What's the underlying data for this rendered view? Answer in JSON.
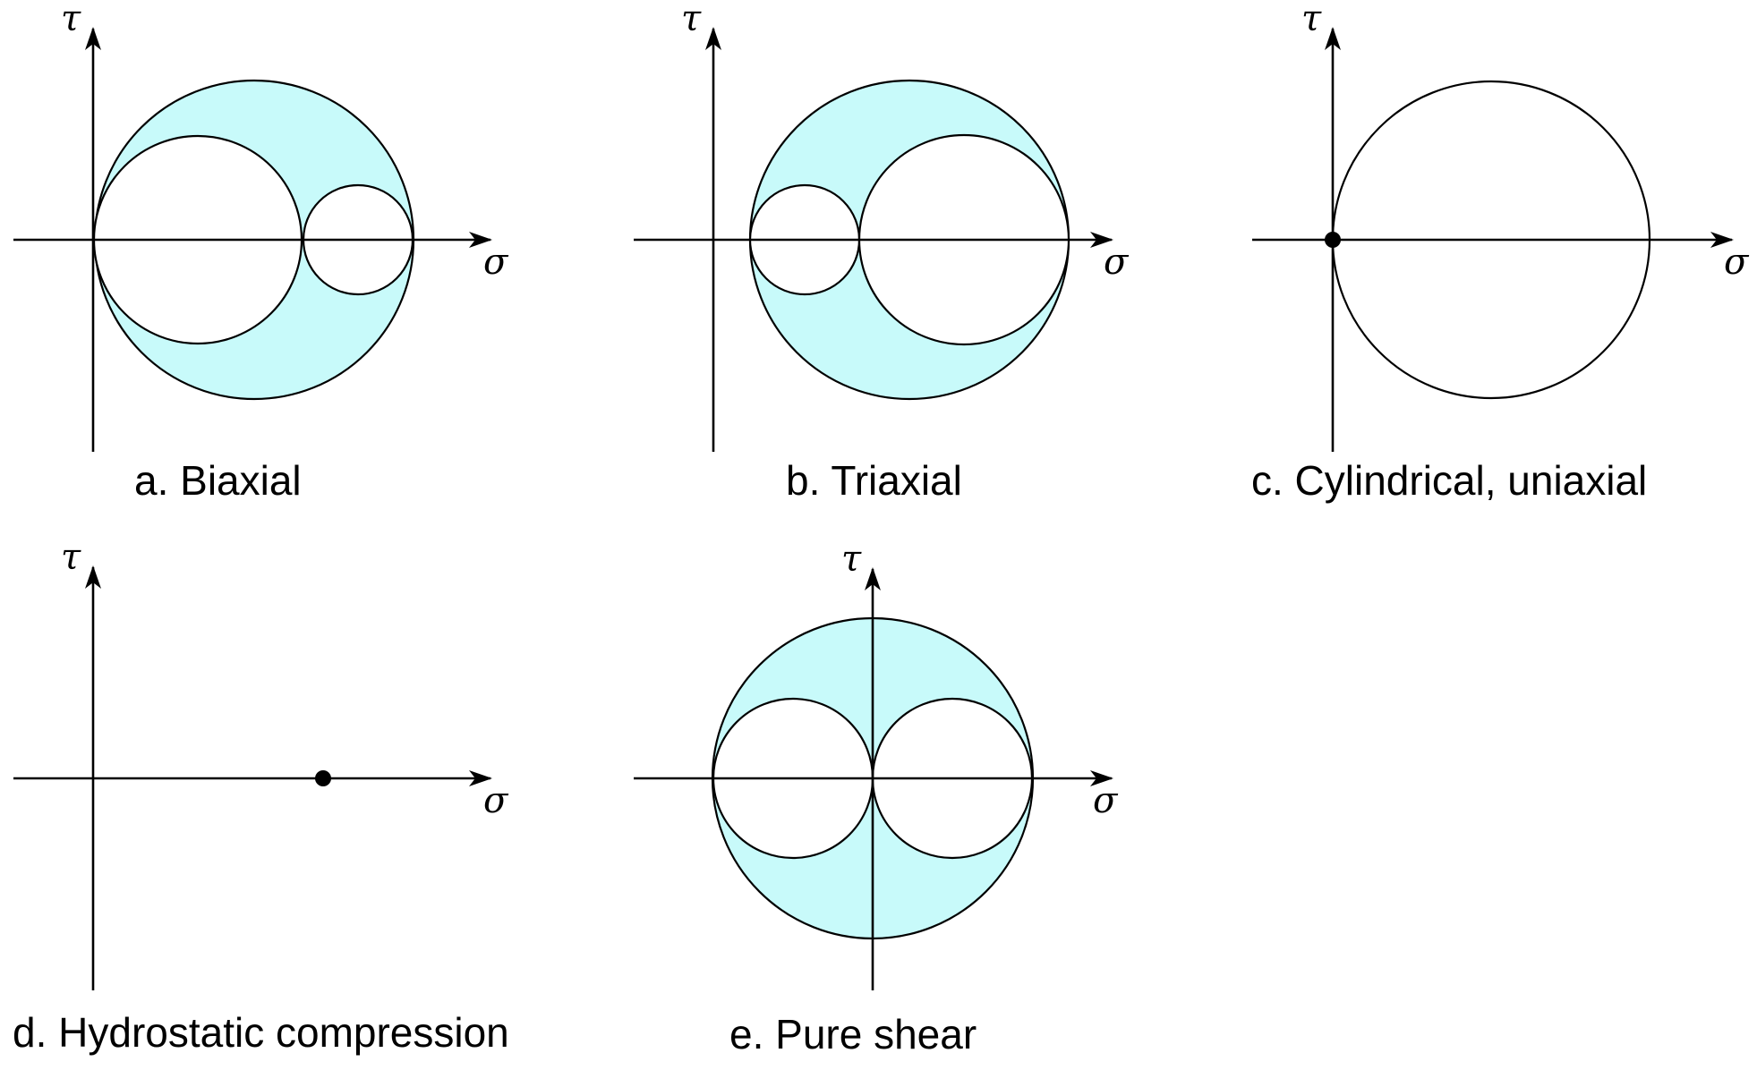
{
  "colors": {
    "shaded": "#c8fafa",
    "line": "#000000",
    "background": "#ffffff"
  },
  "axis_labels": {
    "horizontal": "σ",
    "vertical": "τ"
  },
  "panels": [
    {
      "id": "a",
      "caption": "a. Biaxial",
      "shaded": true,
      "circles": 3,
      "points": 0
    },
    {
      "id": "b",
      "caption": "b. Triaxial",
      "shaded": true,
      "circles": 3,
      "points": 0
    },
    {
      "id": "c",
      "caption": "c. Cylindrical, uniaxial",
      "shaded": false,
      "circles": 1,
      "points": 1
    },
    {
      "id": "d",
      "caption": "d. Hydrostatic compression",
      "shaded": false,
      "circles": 0,
      "points": 1
    },
    {
      "id": "e",
      "caption": "e. Pure shear",
      "shaded": true,
      "circles": 3,
      "points": 0
    }
  ]
}
